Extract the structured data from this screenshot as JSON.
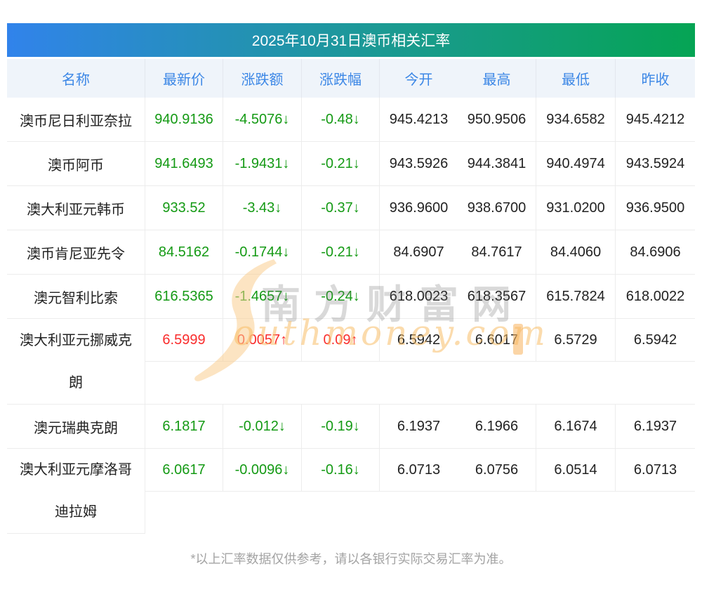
{
  "page": {
    "title": "2025年10月31日澳币相关汇率",
    "footnote": "*以上汇率数据仅供参考，请以各银行实际交易汇率为准。",
    "watermark": {
      "cn": "南方财富网",
      "en": "outhmoney.com"
    },
    "colors": {
      "gradient_start": "#3183eb",
      "gradient_end": "#05a454",
      "header_text": "#3c87e6",
      "up_red": "#f92c2c",
      "down_green": "#149a14"
    }
  },
  "table": {
    "columns": [
      "名称",
      "最新价",
      "涨跌额",
      "涨跌幅",
      "今开",
      "最高",
      "最低",
      "昨收"
    ],
    "rows": [
      {
        "name": "澳币尼日利亚奈拉",
        "last": "940.9136",
        "change": "-4.5076↓",
        "pct": "-0.48↓",
        "dir": "down",
        "open": "945.4213",
        "high": "950.9506",
        "low": "934.6582",
        "prev": "945.4212",
        "tall": false
      },
      {
        "name": "澳币阿币",
        "last": "941.6493",
        "change": "-1.9431↓",
        "pct": "-0.21↓",
        "dir": "down",
        "open": "943.5926",
        "high": "944.3841",
        "low": "940.4974",
        "prev": "943.5924",
        "tall": false
      },
      {
        "name": "澳大利亚元韩币",
        "last": "933.52",
        "change": "-3.43↓",
        "pct": "-0.37↓",
        "dir": "down",
        "open": "936.9600",
        "high": "938.6700",
        "low": "931.0200",
        "prev": "936.9500",
        "tall": false
      },
      {
        "name": "澳币肯尼亚先令",
        "last": "84.5162",
        "change": "-0.1744↓",
        "pct": "-0.21↓",
        "dir": "down",
        "open": "84.6907",
        "high": "84.7617",
        "low": "84.4060",
        "prev": "84.6906",
        "tall": false
      },
      {
        "name": "澳元智利比索",
        "last": "616.5365",
        "change": "-1.4657↓",
        "pct": "-0.24↓",
        "dir": "down",
        "open": "618.0023",
        "high": "618.3567",
        "low": "615.7824",
        "prev": "618.0022",
        "tall": false
      },
      {
        "name": "澳大利亚元挪威克朗",
        "last": "6.5999",
        "change": "0.0057↑",
        "pct": "0.09↑",
        "dir": "up",
        "open": "6.5942",
        "high": "6.6017",
        "low": "6.5729",
        "prev": "6.5942",
        "tall": true
      },
      {
        "name": "澳元瑞典克朗",
        "last": "6.1817",
        "change": "-0.012↓",
        "pct": "-0.19↓",
        "dir": "down",
        "open": "6.1937",
        "high": "6.1966",
        "low": "6.1674",
        "prev": "6.1937",
        "tall": false
      },
      {
        "name": "澳大利亚元摩洛哥迪拉姆",
        "last": "6.0617",
        "change": "-0.0096↓",
        "pct": "-0.16↓",
        "dir": "down",
        "open": "6.0713",
        "high": "6.0756",
        "low": "6.0514",
        "prev": "6.0713",
        "tall": true
      }
    ]
  }
}
